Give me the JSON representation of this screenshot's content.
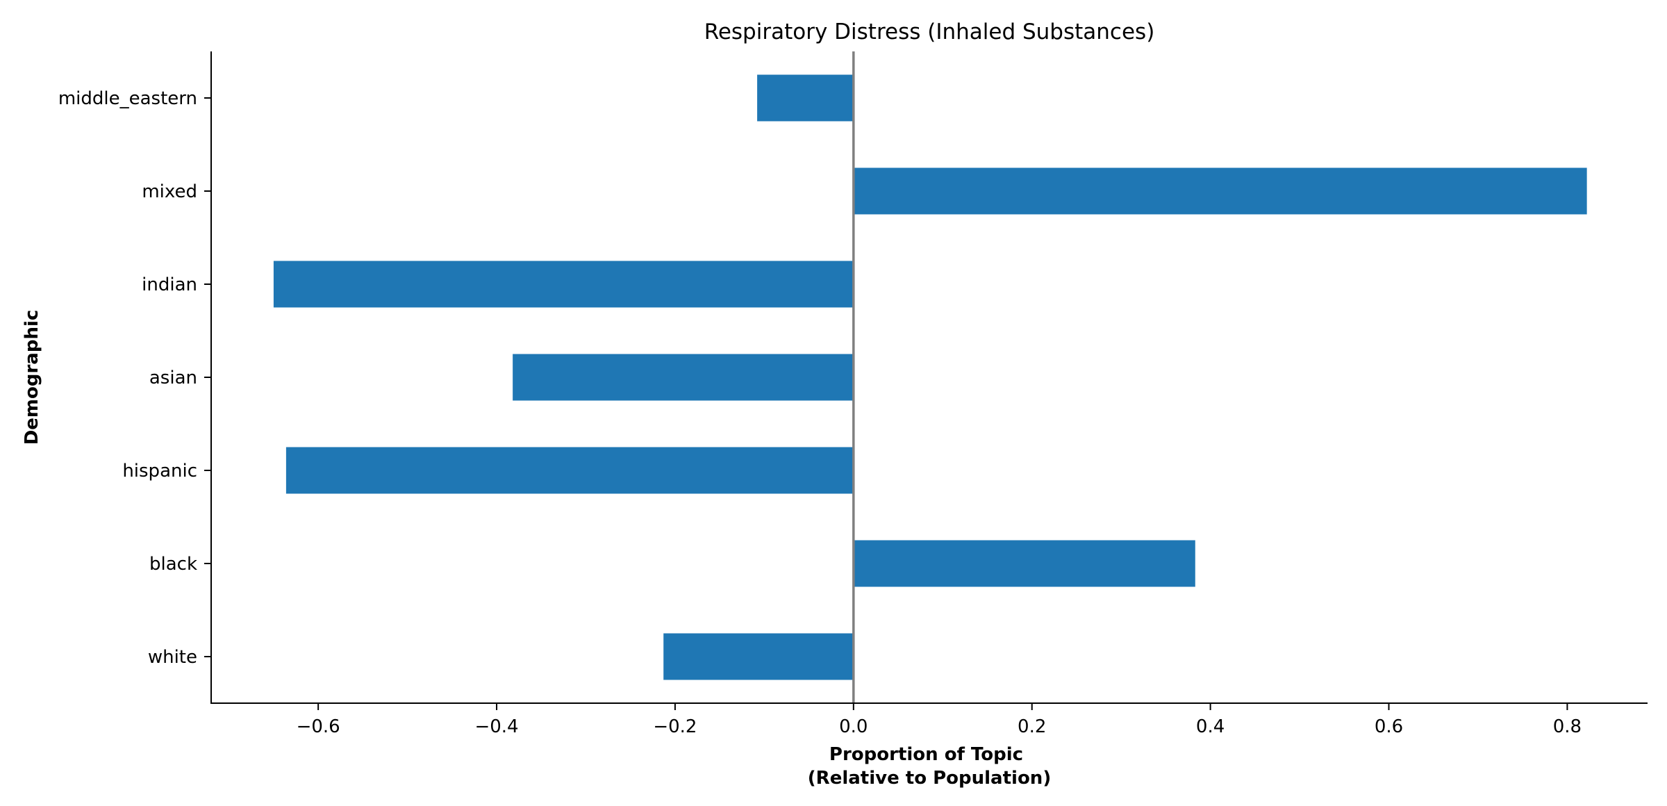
{
  "chart_data": {
    "type": "bar",
    "orientation": "horizontal",
    "title": "Respiratory Distress (Inhaled Substances)",
    "xlabel_lines": [
      "Proportion of Topic",
      "(Relative to Population)"
    ],
    "ylabel": "Demographic",
    "categories": [
      "white",
      "black",
      "hispanic",
      "asian",
      "indian",
      "mixed",
      "middle_eastern"
    ],
    "values": [
      -0.213,
      0.383,
      -0.636,
      -0.382,
      -0.65,
      0.822,
      -0.108
    ],
    "xlim": [
      -0.72,
      0.89
    ],
    "xticks": [
      -0.6,
      -0.4,
      -0.2,
      0.0,
      0.2,
      0.4,
      0.6,
      0.8
    ],
    "xtick_labels": [
      "−0.6",
      "−0.4",
      "−0.2",
      "0.0",
      "0.2",
      "0.4",
      "0.6",
      "0.8"
    ],
    "grid": false,
    "legend": false,
    "colors": {
      "bar": "#1f77b4",
      "zero_line": "#808080",
      "axis": "#000000"
    }
  }
}
